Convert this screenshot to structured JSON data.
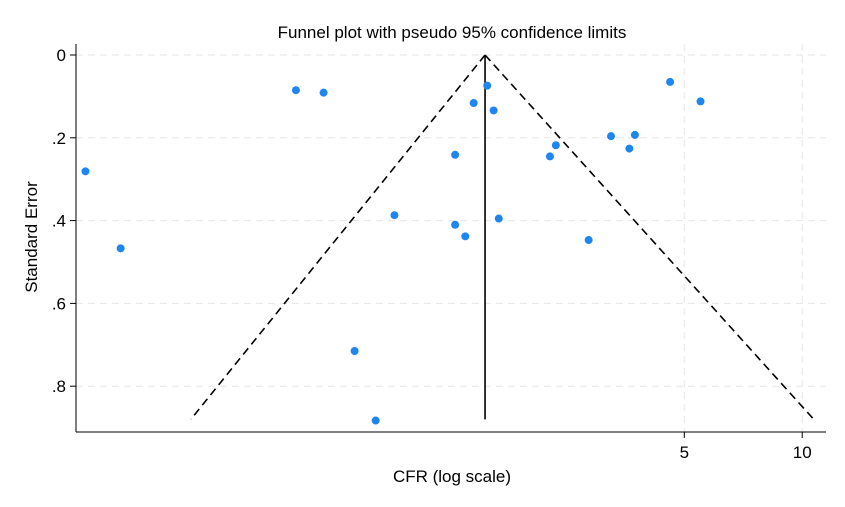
{
  "chart_data": {
    "type": "scatter",
    "title": "Funnel plot with pseudo 95% confidence limits",
    "xlabel": "CFR (log scale)",
    "ylabel": "Standard Error",
    "x_scale": "log",
    "y_inverted": true,
    "xlim": [
      0.14,
      11.5
    ],
    "ylim": [
      0,
      0.91
    ],
    "x_ticks": [
      {
        "value": 5,
        "label": "5"
      },
      {
        "value": 10,
        "label": "10"
      }
    ],
    "y_ticks": [
      {
        "value": 0,
        "label": "0"
      },
      {
        "value": 0.2,
        "label": ".2"
      },
      {
        "value": 0.4,
        "label": ".4"
      },
      {
        "value": 0.6,
        "label": ".6"
      },
      {
        "value": 0.8,
        "label": ".8"
      }
    ],
    "grid": true,
    "colors": {
      "points": "#1f86ef",
      "lines": "#000000",
      "grid": "#e6e6e6"
    },
    "pooled_estimate": 1.55,
    "funnel": {
      "apex": [
        1.55,
        0
      ],
      "left_end": [
        0.275,
        0.88
      ],
      "right_end": [
        10.7,
        0.88
      ],
      "bottom_se": 0.88
    },
    "points": [
      {
        "x": 0.148,
        "y": 0.281
      },
      {
        "x": 0.182,
        "y": 0.467
      },
      {
        "x": 0.51,
        "y": 0.085
      },
      {
        "x": 0.6,
        "y": 0.091
      },
      {
        "x": 0.72,
        "y": 0.715
      },
      {
        "x": 0.815,
        "y": 0.883
      },
      {
        "x": 0.91,
        "y": 0.387
      },
      {
        "x": 1.3,
        "y": 0.241
      },
      {
        "x": 1.3,
        "y": 0.41
      },
      {
        "x": 1.38,
        "y": 0.438
      },
      {
        "x": 1.45,
        "y": 0.116
      },
      {
        "x": 1.57,
        "y": 0.074
      },
      {
        "x": 1.63,
        "y": 0.134
      },
      {
        "x": 1.68,
        "y": 0.395
      },
      {
        "x": 2.27,
        "y": 0.245
      },
      {
        "x": 2.35,
        "y": 0.218
      },
      {
        "x": 2.85,
        "y": 0.447
      },
      {
        "x": 3.25,
        "y": 0.196
      },
      {
        "x": 3.62,
        "y": 0.226
      },
      {
        "x": 3.74,
        "y": 0.193
      },
      {
        "x": 4.6,
        "y": 0.065
      },
      {
        "x": 5.5,
        "y": 0.112
      }
    ]
  }
}
